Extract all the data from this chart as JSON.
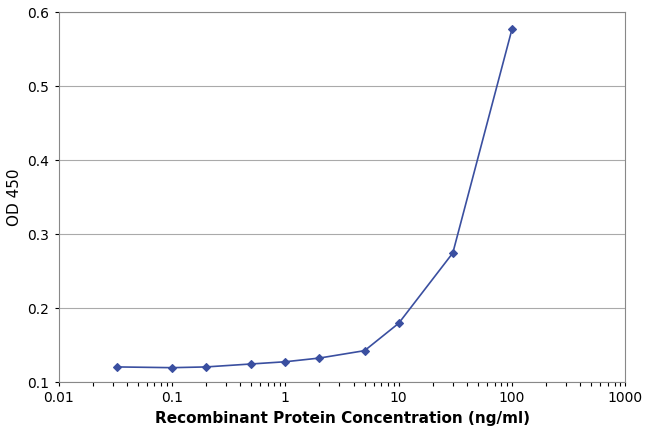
{
  "x": [
    0.033,
    0.1,
    0.2,
    0.5,
    1.0,
    2.0,
    5.0,
    10.0,
    30.0,
    100.0
  ],
  "y": [
    0.121,
    0.12,
    0.121,
    0.125,
    0.128,
    0.133,
    0.143,
    0.18,
    0.275,
    0.578
  ],
  "line_color": "#3a4fa0",
  "marker": "D",
  "marker_size": 4,
  "marker_facecolor": "#3a4fa0",
  "xlabel": "Recombinant Protein Concentration (ng/ml)",
  "ylabel": "OD 450",
  "xlim_log": [
    0.01,
    1000
  ],
  "ylim": [
    0.1,
    0.6
  ],
  "yticks": [
    0.1,
    0.2,
    0.3,
    0.4,
    0.5,
    0.6
  ],
  "xtick_labels": [
    "0.01",
    "0.1",
    "1",
    "10",
    "100",
    "1000"
  ],
  "xtick_values": [
    0.01,
    0.1,
    1,
    10,
    100,
    1000
  ],
  "grid_color": "#aaaaaa",
  "background_color": "#ffffff",
  "plot_bg_color": "#ffffff",
  "xlabel_fontsize": 11,
  "ylabel_fontsize": 11,
  "tick_fontsize": 10,
  "text_color": "#000000",
  "spine_color": "#888888",
  "line_width": 1.2
}
